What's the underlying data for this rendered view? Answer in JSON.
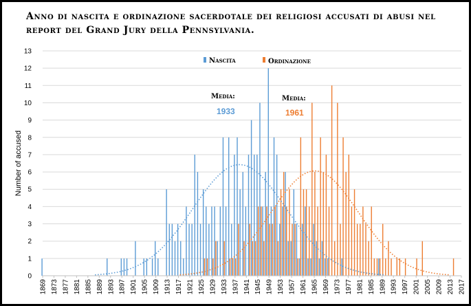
{
  "title": "Anno di nascita e ordinazione sacerdotale dei religiosi accusati di abusi nel report del Grand Jury della Pennsylvania.",
  "colors": {
    "birth": "#5b9bd5",
    "ordination": "#ed7d31"
  },
  "chart_data": {
    "type": "bar",
    "title": "Anno di nascita e ordinazione sacerdotale dei religiosi accusati di abusi nel report del Grand Jury della Pennsylvania.",
    "ylabel": "Number of accused",
    "xlabel": "",
    "xlim": [
      1869,
      2017
    ],
    "ylim": [
      0,
      13
    ],
    "y_ticks": [
      "0",
      "1",
      "2",
      "3",
      "4",
      "5",
      "6",
      "7",
      "8",
      "9",
      "10",
      "11",
      "12",
      "13"
    ],
    "x_ticks": [
      "1869",
      "1873",
      "1877",
      "1881",
      "1885",
      "1889",
      "1893",
      "1897",
      "1901",
      "1905",
      "1909",
      "1913",
      "1917",
      "1921",
      "1925",
      "1929",
      "1933",
      "1937",
      "1941",
      "1945",
      "1949",
      "1953",
      "1957",
      "1961",
      "1965",
      "1969",
      "1973",
      "1977",
      "1981",
      "1985",
      "1989",
      "1993",
      "1997",
      "2001",
      "2005",
      "2009",
      "2013",
      "2017"
    ],
    "legend": {
      "position": "top-center",
      "entries": [
        "Nascita",
        "Ordinazione"
      ]
    },
    "annotations": [
      {
        "label": "Media:",
        "value": "1933",
        "series": "Nascita"
      },
      {
        "label": "Media:",
        "value": "1961",
        "series": "Ordinazione"
      }
    ],
    "series": [
      {
        "name": "Nascita",
        "x": [
          1869,
          1892,
          1897,
          1898,
          1899,
          1902,
          1905,
          1906,
          1908,
          1909,
          1910,
          1913,
          1914,
          1915,
          1916,
          1917,
          1918,
          1919,
          1920,
          1921,
          1922,
          1923,
          1924,
          1925,
          1926,
          1927,
          1928,
          1929,
          1930,
          1931,
          1932,
          1933,
          1934,
          1935,
          1936,
          1937,
          1938,
          1939,
          1940,
          1941,
          1942,
          1943,
          1944,
          1945,
          1946,
          1947,
          1948,
          1949,
          1950,
          1951,
          1952,
          1953,
          1954,
          1955,
          1956,
          1957,
          1958,
          1959,
          1960,
          1961,
          1962,
          1963,
          1964,
          1965,
          1966,
          1967,
          1968,
          1969,
          1970,
          1975,
          1988
        ],
        "values": [
          1,
          1,
          1,
          1,
          1,
          2,
          1,
          1,
          1,
          2,
          1,
          5,
          3,
          3,
          2,
          3,
          2,
          1,
          4,
          3,
          3,
          7,
          6,
          3,
          5,
          4,
          3,
          4,
          4,
          2,
          4,
          8,
          4,
          8,
          3,
          7,
          8,
          5,
          6,
          4,
          7,
          9,
          7,
          7,
          10,
          4,
          6,
          12,
          4,
          8,
          7,
          3,
          4,
          6,
          2,
          2,
          5,
          3,
          1,
          3,
          4,
          1,
          1,
          3,
          2,
          1,
          2,
          1,
          1,
          1,
          1
        ]
      },
      {
        "name": "Ordinazione",
        "x": [
          1926,
          1927,
          1929,
          1930,
          1933,
          1935,
          1936,
          1937,
          1938,
          1940,
          1942,
          1943,
          1944,
          1945,
          1946,
          1947,
          1948,
          1949,
          1950,
          1951,
          1952,
          1953,
          1954,
          1955,
          1956,
          1957,
          1958,
          1959,
          1960,
          1961,
          1962,
          1963,
          1964,
          1965,
          1966,
          1967,
          1968,
          1969,
          1970,
          1971,
          1972,
          1973,
          1974,
          1975,
          1976,
          1977,
          1978,
          1979,
          1980,
          1981,
          1982,
          1983,
          1984,
          1985,
          1986,
          1987,
          1988,
          1989,
          1990,
          1991,
          1992,
          1994,
          1995,
          1997,
          2001,
          2003,
          2014
        ],
        "values": [
          1,
          1,
          1,
          2,
          2,
          1,
          1,
          1,
          3,
          2,
          3,
          2,
          2,
          4,
          4,
          2,
          4,
          3,
          3,
          4,
          2,
          5,
          6,
          4,
          5,
          3,
          3,
          1,
          8,
          5,
          5,
          4,
          10,
          6,
          4,
          8,
          6,
          7,
          4,
          11,
          2,
          10,
          3,
          8,
          6,
          7,
          4,
          5,
          3,
          3,
          4,
          3,
          2,
          4,
          1,
          1,
          1,
          3,
          1,
          2,
          1,
          1,
          1,
          1,
          1,
          2,
          1
        ]
      }
    ]
  }
}
